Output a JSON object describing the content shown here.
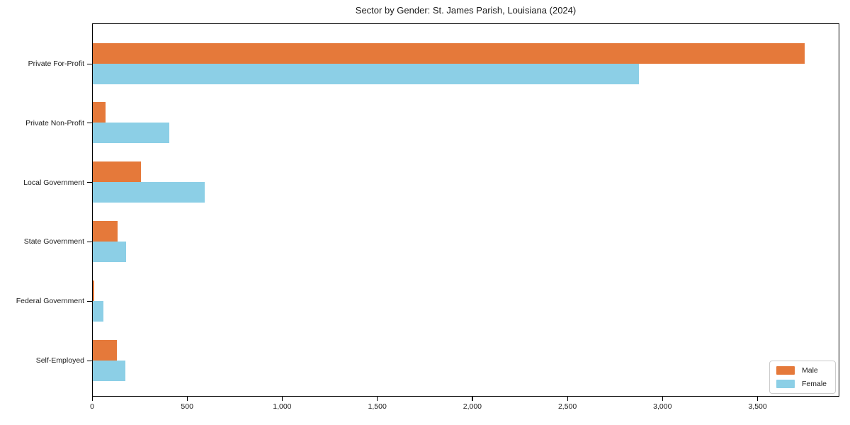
{
  "chart_data": {
    "type": "bar",
    "orientation": "horizontal",
    "title": "Sector by Gender: St. James Parish, Louisiana (2024)",
    "categories": [
      "Private For-Profit",
      "Private Non-Profit",
      "Local Government",
      "State Government",
      "Federal Government",
      "Self-Employed"
    ],
    "series": [
      {
        "name": "Male",
        "color": "#e5793a",
        "values": [
          3742,
          67,
          253,
          130,
          7,
          127
        ]
      },
      {
        "name": "Female",
        "color": "#8ccfe6",
        "values": [
          2871,
          402,
          588,
          176,
          56,
          172
        ]
      }
    ],
    "xlabel": "",
    "ylabel": "",
    "xlim": [
      0,
      3930
    ],
    "xticks": [
      0,
      500,
      1000,
      1500,
      2000,
      2500,
      3000,
      3500
    ],
    "xtick_labels": [
      "0",
      "500",
      "1,000",
      "1,500",
      "2,000",
      "2,500",
      "3,000",
      "3,500"
    ],
    "grid": false,
    "legend_position": "lower right",
    "background_color": "#ffffff",
    "axis_color": "#000000"
  }
}
